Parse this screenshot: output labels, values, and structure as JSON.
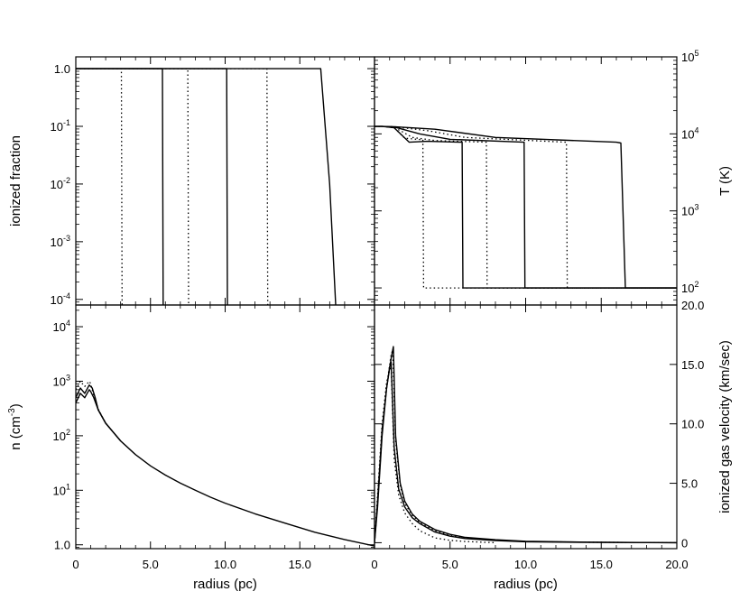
{
  "chart_data": [
    {
      "type": "line",
      "panel": "top-left",
      "xlabel": "",
      "ylabel": "ionized fraction",
      "yscale": "log",
      "xlim": [
        0,
        20
      ],
      "ylim": [
        8e-05,
        1.6
      ],
      "yticks": [
        {
          "value": 1,
          "label": "1.0"
        },
        {
          "value": 0.1,
          "label": "10-1",
          "base": "10",
          "exp": "-1"
        },
        {
          "value": 0.01,
          "label": "10-2",
          "base": "10",
          "exp": "-2"
        },
        {
          "value": 0.001,
          "label": "10-3",
          "base": "10",
          "exp": "-3"
        },
        {
          "value": 0.0001,
          "label": "10-4",
          "base": "10",
          "exp": "-4"
        }
      ],
      "series": [
        {
          "style": "dotted",
          "x": [
            0,
            3.05,
            3.1
          ],
          "y": [
            1,
            1,
            8e-05
          ]
        },
        {
          "style": "solid",
          "x": [
            0,
            5.8,
            5.85
          ],
          "y": [
            1,
            1,
            8e-05
          ]
        },
        {
          "style": "dotted",
          "x": [
            0,
            7.5,
            7.55
          ],
          "y": [
            1,
            1,
            8e-05
          ]
        },
        {
          "style": "solid",
          "x": [
            0,
            10.1,
            10.15
          ],
          "y": [
            1,
            1,
            8e-05
          ]
        },
        {
          "style": "dotted",
          "x": [
            0,
            12.8,
            12.85
          ],
          "y": [
            1,
            1,
            8e-05
          ]
        },
        {
          "style": "solid",
          "x": [
            0,
            16.4,
            17.0,
            17.4
          ],
          "y": [
            1,
            1,
            0.01,
            8e-05
          ]
        }
      ]
    },
    {
      "type": "line",
      "panel": "top-right",
      "xlabel": "",
      "ylabel": "T (K)",
      "yscale": "log",
      "xlim": [
        0,
        20
      ],
      "ylim": [
        60,
        100000
      ],
      "yticks": [
        {
          "value": 100000,
          "label": "105",
          "base": "10",
          "exp": "5"
        },
        {
          "value": 10000,
          "label": "104",
          "base": "10",
          "exp": "4"
        },
        {
          "value": 1000,
          "label": "103",
          "base": "10",
          "exp": "3"
        },
        {
          "value": 100,
          "label": "102",
          "base": "10",
          "exp": "2"
        }
      ],
      "series": [
        {
          "style": "dotted",
          "x": [
            0,
            0.5,
            1.3,
            2.0,
            2.8,
            3.2,
            3.25,
            20
          ],
          "y": [
            12500,
            12500,
            12000,
            8800,
            8500,
            8400,
            100,
            100
          ]
        },
        {
          "style": "solid",
          "x": [
            0,
            0.5,
            1.3,
            2.3,
            3.5,
            5.8,
            5.85,
            20
          ],
          "y": [
            12500,
            12500,
            12000,
            7800,
            8000,
            7800,
            100,
            100
          ]
        },
        {
          "style": "dotted",
          "x": [
            0,
            0.5,
            1.3,
            2.5,
            4.0,
            7.4,
            7.45,
            20
          ],
          "y": [
            12500,
            12500,
            12200,
            9000,
            8200,
            7800,
            100,
            100
          ]
        },
        {
          "style": "solid",
          "x": [
            0,
            0.5,
            1.3,
            3.0,
            5.0,
            9.9,
            9.95,
            20
          ],
          "y": [
            12500,
            12500,
            12300,
            10000,
            8500,
            7800,
            100,
            100
          ]
        },
        {
          "style": "dotted",
          "x": [
            0,
            0.5,
            1.3,
            3.5,
            6.0,
            12.7,
            12.75,
            20
          ],
          "y": [
            12500,
            12500,
            12400,
            11000,
            9000,
            7800,
            100,
            100
          ]
        },
        {
          "style": "solid",
          "x": [
            0,
            0.5,
            1.3,
            4.0,
            8.0,
            16.0,
            16.3,
            16.6,
            20
          ],
          "y": [
            12500,
            12500,
            12400,
            11500,
            9000,
            7800,
            7600,
            100,
            100
          ]
        }
      ]
    },
    {
      "type": "line",
      "panel": "bottom-left",
      "xlabel": "radius (pc)",
      "ylabel": "n (cm-3)",
      "yscale": "log",
      "xlim": [
        0,
        20
      ],
      "ylim": [
        0.85,
        25000
      ],
      "xticks": [
        {
          "value": 0,
          "label": "0"
        },
        {
          "value": 5,
          "label": "5.0"
        },
        {
          "value": 10,
          "label": "10.0"
        },
        {
          "value": 15,
          "label": "15.0"
        }
      ],
      "yticks": [
        {
          "value": 10000,
          "label": "104",
          "base": "10",
          "exp": "4"
        },
        {
          "value": 1000,
          "label": "103",
          "base": "10",
          "exp": "3"
        },
        {
          "value": 100,
          "label": "102",
          "base": "10",
          "exp": "2"
        },
        {
          "value": 10,
          "label": "101",
          "base": "10",
          "exp": "1"
        },
        {
          "value": 1,
          "label": "1.0"
        }
      ],
      "series": [
        {
          "style": "solid",
          "x": [
            0,
            0.3,
            0.6,
            0.9,
            1.0,
            1.2,
            1.5,
            2,
            3,
            4,
            5,
            6,
            7,
            8,
            9,
            10,
            12,
            14,
            16,
            18,
            20
          ],
          "y": [
            400,
            600,
            500,
            700,
            650,
            500,
            300,
            170,
            80,
            45,
            28,
            19,
            13.5,
            10,
            7.5,
            5.8,
            3.7,
            2.5,
            1.7,
            1.25,
            0.95
          ]
        },
        {
          "style": "dotted",
          "x": [
            0,
            0.3,
            0.6,
            0.9,
            1.0,
            1.2,
            1.5,
            2,
            3
          ],
          "y": [
            700,
            1000,
            800,
            1000,
            900,
            550,
            310,
            170,
            80
          ]
        },
        {
          "style": "solid",
          "x": [
            0,
            0.3,
            0.6,
            0.9,
            1.1,
            1.3,
            1.5,
            2,
            3
          ],
          "y": [
            500,
            750,
            600,
            850,
            750,
            500,
            300,
            170,
            80
          ]
        }
      ]
    },
    {
      "type": "line",
      "panel": "bottom-right",
      "xlabel": "radius (pc)",
      "ylabel": "ionized gas velocity (km/sec)",
      "yscale": "linear",
      "xlim": [
        0,
        20
      ],
      "ylim": [
        -0.5,
        20
      ],
      "xticks": [
        {
          "value": 0,
          "label": "0"
        },
        {
          "value": 5,
          "label": "5.0"
        },
        {
          "value": 10,
          "label": "10.0"
        },
        {
          "value": 15,
          "label": "15.0"
        },
        {
          "value": 20,
          "label": "20.0"
        }
      ],
      "yticks": [
        {
          "value": 0,
          "label": "0"
        },
        {
          "value": 5,
          "label": "5.0"
        },
        {
          "value": 10,
          "label": "10.0"
        },
        {
          "value": 15,
          "label": "15.0"
        },
        {
          "value": 20,
          "label": "20.0"
        }
      ],
      "series": [
        {
          "style": "solid",
          "x": [
            0,
            0.2,
            0.5,
            0.8,
            1.1,
            1.25,
            1.4,
            1.7,
            2.0,
            2.5,
            3,
            4,
            5,
            6,
            8,
            10,
            14,
            20
          ],
          "y": [
            0,
            3,
            9,
            13,
            15.5,
            16.5,
            9,
            5,
            3.5,
            2.4,
            1.8,
            1.1,
            0.7,
            0.45,
            0.25,
            0.12,
            0.05,
            0
          ]
        },
        {
          "style": "solid",
          "x": [
            0,
            0.2,
            0.5,
            0.8,
            1.0,
            1.1,
            1.3,
            1.6,
            2.0,
            2.5,
            3,
            4,
            5,
            6,
            8,
            10,
            14,
            20
          ],
          "y": [
            0,
            3.5,
            9.5,
            13,
            14.8,
            15.2,
            8,
            4.5,
            3,
            2.1,
            1.6,
            0.9,
            0.55,
            0.35,
            0.18,
            0.08,
            0.03,
            0
          ]
        },
        {
          "style": "dotted",
          "x": [
            0,
            0.2,
            0.5,
            0.8,
            1.0,
            1.1,
            1.3,
            1.6,
            2.0,
            2.5,
            3,
            4,
            5,
            6,
            8
          ],
          "y": [
            0,
            4,
            10,
            13.5,
            14.5,
            14.8,
            7,
            4,
            2.5,
            1.6,
            1.0,
            0.4,
            0.2,
            0.1,
            0
          ]
        },
        {
          "style": "dotted",
          "x": [
            0,
            0.2,
            0.5,
            0.8,
            1.1,
            1.2,
            1.4,
            1.7,
            2.0,
            2.5,
            3,
            4,
            5,
            6,
            8,
            10,
            14,
            20
          ],
          "y": [
            0,
            3.2,
            9.2,
            13.2,
            15.8,
            16.2,
            8.6,
            4.8,
            3.3,
            2.3,
            1.7,
            1.0,
            0.65,
            0.42,
            0.22,
            0.1,
            0.04,
            0
          ]
        }
      ]
    }
  ]
}
